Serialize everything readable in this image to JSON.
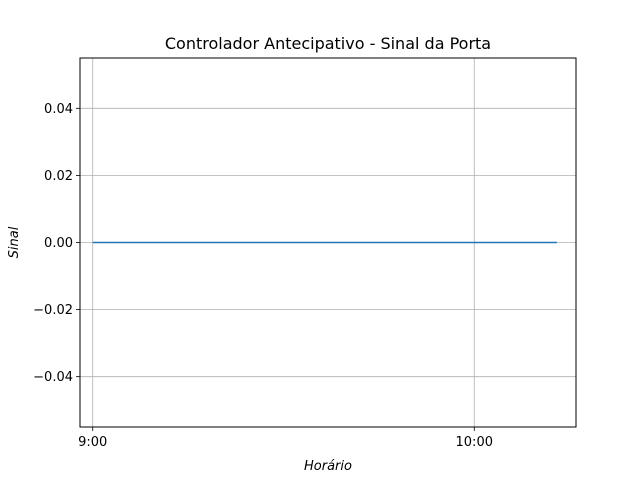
{
  "chart_data": {
    "type": "line",
    "title": "Controlador Antecipativo - Sinal da Porta",
    "xlabel": "Horário",
    "ylabel": "Sinal",
    "x_ticks": [
      {
        "value": "9:00",
        "label": "9:00"
      },
      {
        "value": "10:00",
        "label": "10:00"
      }
    ],
    "y_ticks": [
      {
        "value": 0.04,
        "label": "0.04"
      },
      {
        "value": 0.02,
        "label": "0.02"
      },
      {
        "value": 0.0,
        "label": "0.00"
      },
      {
        "value": -0.02,
        "label": "−0.02"
      },
      {
        "value": -0.04,
        "label": "−0.04"
      }
    ],
    "xlim": [
      "8:58",
      "10:16"
    ],
    "ylim": [
      -0.055,
      0.055
    ],
    "grid": true,
    "series": [
      {
        "color": "#1f77b4",
        "x": [
          "9:00",
          "10:13"
        ],
        "y": [
          0.0,
          0.0
        ]
      }
    ]
  }
}
